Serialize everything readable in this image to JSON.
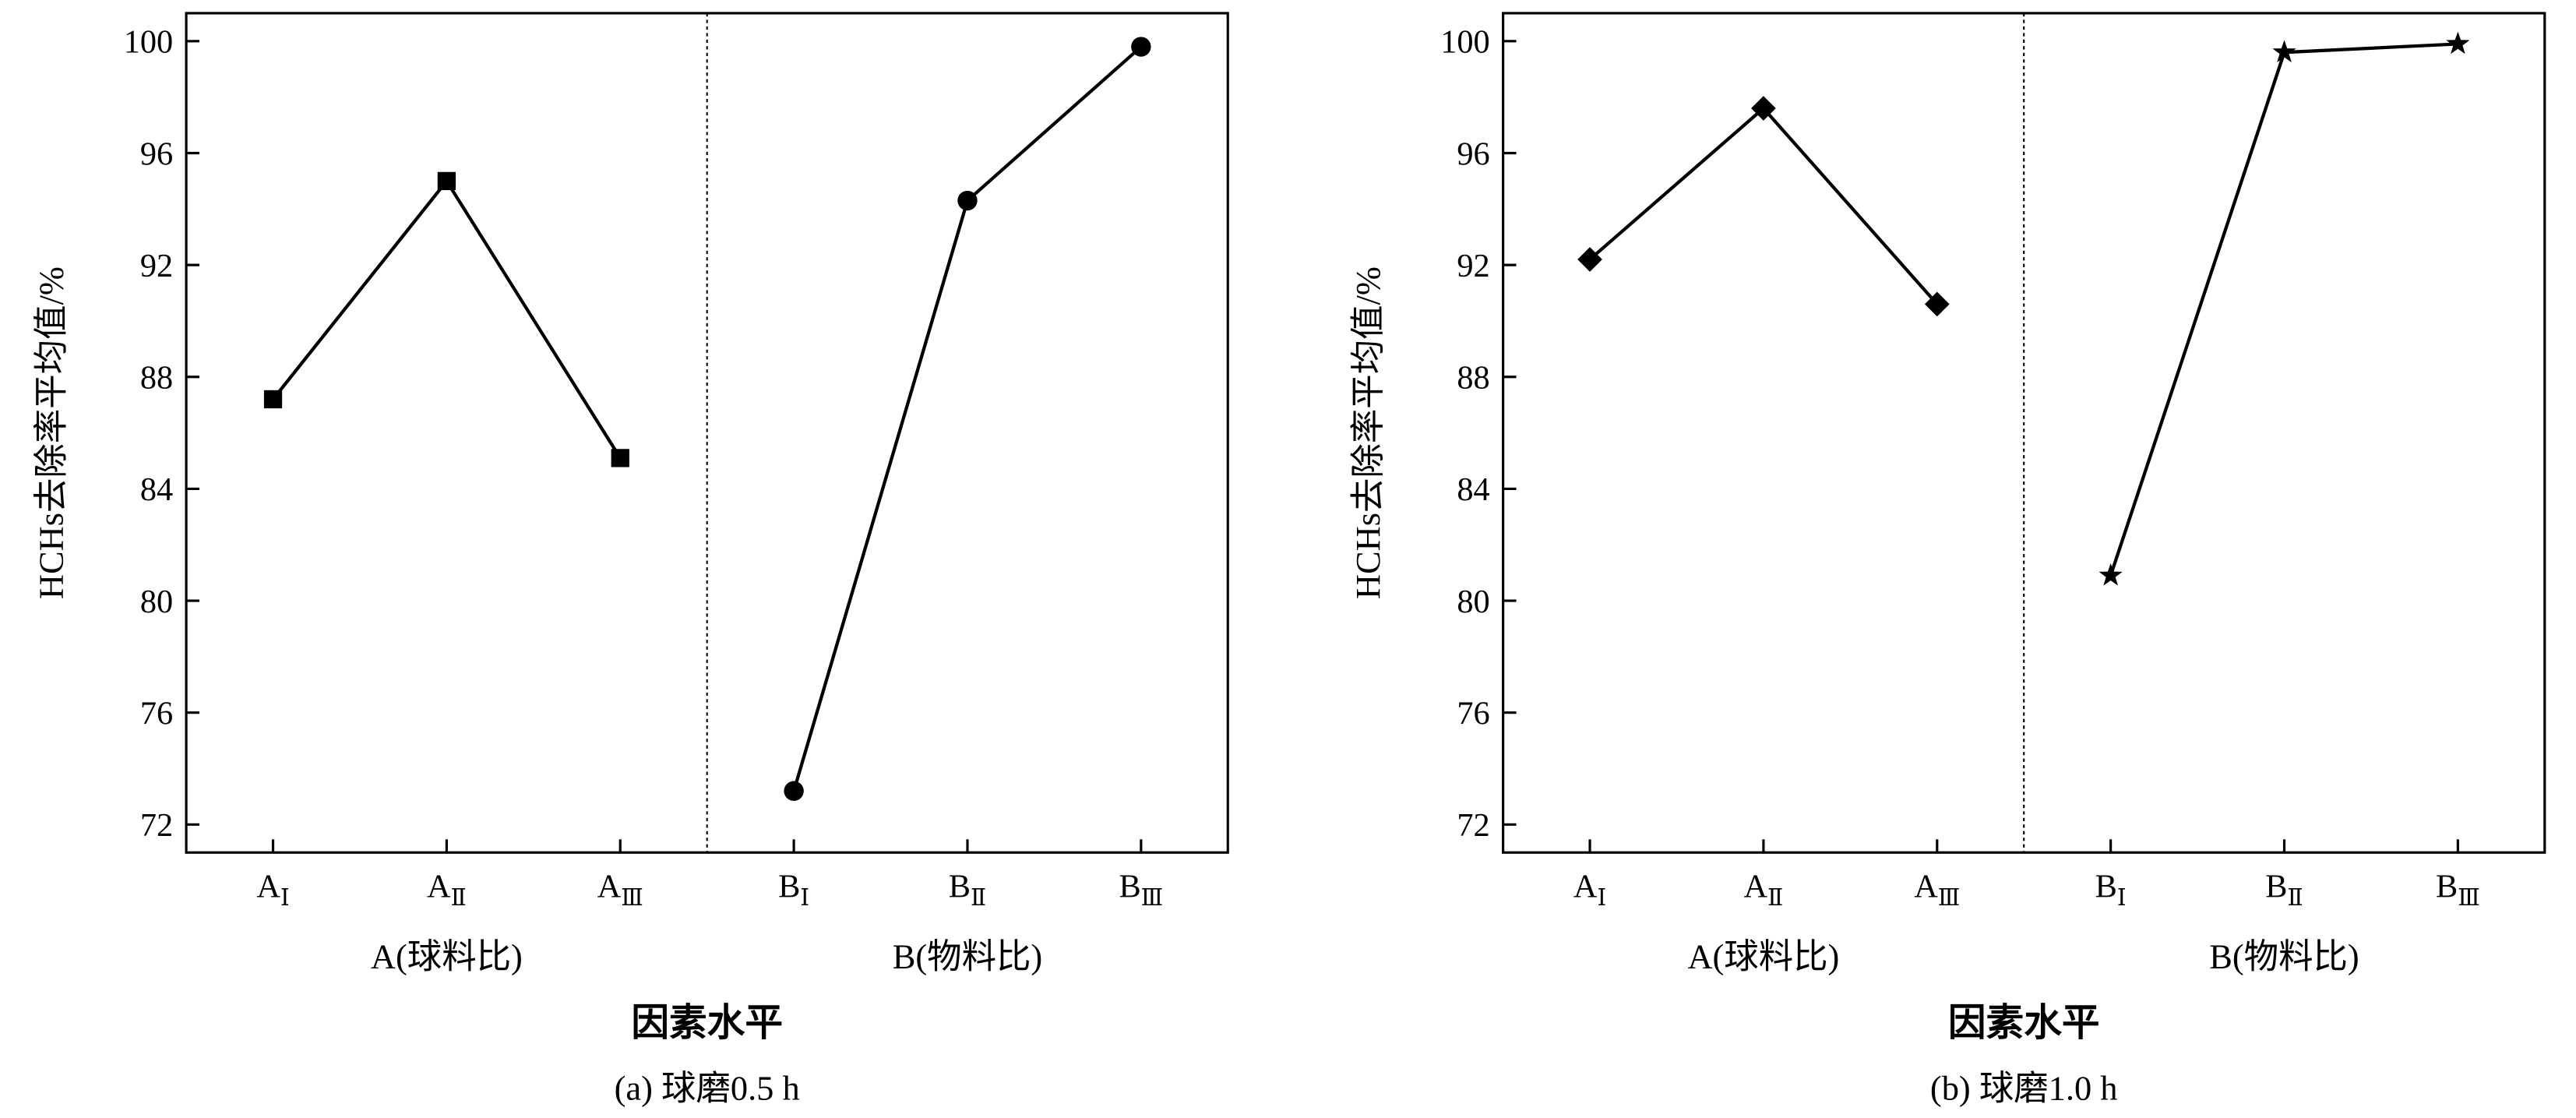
{
  "chart_data": [
    {
      "type": "line",
      "caption": "(a)  球磨0.5 h",
      "xlabel": "因素水平",
      "ylabel": "HCHs去除率平均值/%",
      "categories": [
        "AⅠ",
        "AⅡ",
        "AⅢ",
        "BⅠ",
        "BⅡ",
        "BⅢ"
      ],
      "group_labels": [
        "A(球料比)",
        "B(物料比)"
      ],
      "ylim": [
        71,
        101
      ],
      "yticks": [
        72,
        76,
        80,
        84,
        88,
        92,
        96,
        100
      ],
      "series": [
        {
          "marker": "square",
          "color": "#000000",
          "values": [
            87.2,
            95.0,
            85.1,
            null,
            null,
            null
          ]
        },
        {
          "marker": "circle",
          "color": "#000000",
          "values": [
            null,
            null,
            null,
            73.2,
            94.3,
            99.8
          ]
        }
      ]
    },
    {
      "type": "line",
      "caption": "(b)  球磨1.0 h",
      "xlabel": "因素水平",
      "ylabel": "HCHs去除率平均值/%",
      "categories": [
        "AⅠ",
        "AⅡ",
        "AⅢ",
        "BⅠ",
        "BⅡ",
        "BⅢ"
      ],
      "group_labels": [
        "A(球料比)",
        "B(物料比)"
      ],
      "ylim": [
        71,
        101
      ],
      "yticks": [
        72,
        76,
        80,
        84,
        88,
        92,
        96,
        100
      ],
      "series": [
        {
          "marker": "diamond",
          "color": "#000000",
          "values": [
            92.2,
            97.6,
            90.6,
            null,
            null,
            null
          ]
        },
        {
          "marker": "star",
          "color": "#000000",
          "values": [
            null,
            null,
            null,
            80.9,
            99.6,
            99.9
          ]
        }
      ]
    }
  ]
}
